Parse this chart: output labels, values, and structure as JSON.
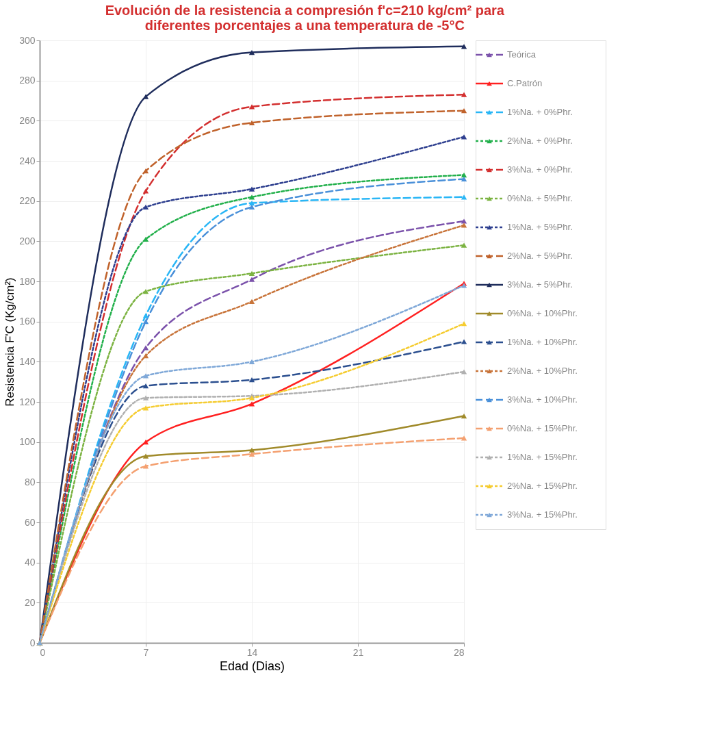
{
  "chart_data": {
    "type": "line",
    "title": [
      "Evolución de la resistencia a compresión f'c=210 kg/cm² para",
      "diferentes porcentajes a una temperatura de -5°C"
    ],
    "xlabel": "Edad (Dias)",
    "ylabel": "Resistencia F'C  (Kg/cm²)",
    "x": [
      0,
      7,
      14,
      28
    ],
    "xlim": [
      0,
      28
    ],
    "xticks": [
      0,
      7,
      14,
      21,
      28
    ],
    "ylim": [
      0,
      300
    ],
    "yticks": [
      0,
      20,
      40,
      60,
      80,
      100,
      120,
      140,
      160,
      180,
      200,
      220,
      240,
      260,
      280,
      300
    ],
    "grid": true,
    "legend": "right",
    "marker": "triangle",
    "series": [
      {
        "name": "Teórica",
        "color": "#7b52ab",
        "line_style": "dashed",
        "values": [
          0,
          147,
          181,
          210
        ]
      },
      {
        "name": "C.Patrón",
        "color": "#ff2020",
        "line_style": "solid",
        "values": [
          0,
          100,
          119,
          179
        ]
      },
      {
        "name": "1%Na. + 0%Phr.",
        "color": "#29b6f6",
        "line_style": "dashed",
        "values": [
          0,
          163,
          219,
          222
        ]
      },
      {
        "name": "2%Na. + 0%Phr.",
        "color": "#22b04b",
        "line_style": "dotted",
        "values": [
          0,
          201,
          222,
          233
        ]
      },
      {
        "name": "3%Na. + 0%Phr.",
        "color": "#d32f2f",
        "line_style": "dashed",
        "values": [
          0,
          225,
          267,
          273
        ]
      },
      {
        "name": "0%Na. + 5%Phr.",
        "color": "#7cb342",
        "line_style": "dotted",
        "values": [
          0,
          175,
          184,
          198
        ]
      },
      {
        "name": "1%Na. + 5%Phr.",
        "color": "#2e3f8f",
        "line_style": "dotted",
        "values": [
          0,
          217,
          226,
          252
        ]
      },
      {
        "name": "2%Na. + 5%Phr.",
        "color": "#c0622b",
        "line_style": "dashed",
        "values": [
          0,
          235,
          259,
          265
        ]
      },
      {
        "name": "3%Na. + 5%Phr.",
        "color": "#1f2d5c",
        "line_style": "solid",
        "values": [
          0,
          272,
          294,
          297
        ]
      },
      {
        "name": "0%Na. + 10%Phr.",
        "color": "#a08a2a",
        "line_style": "solid",
        "values": [
          0,
          93,
          96,
          113
        ]
      },
      {
        "name": "1%Na. + 10%Phr.",
        "color": "#2b4f8f",
        "line_style": "dashed",
        "values": [
          0,
          128,
          131,
          150
        ]
      },
      {
        "name": "2%Na. + 10%Phr.",
        "color": "#c8743a",
        "line_style": "dotted",
        "values": [
          0,
          143,
          170,
          208
        ]
      },
      {
        "name": "3%Na. + 10%Phr.",
        "color": "#4a90d9",
        "line_style": "dashed",
        "values": [
          0,
          160,
          217,
          231
        ]
      },
      {
        "name": "0%Na. + 15%Phr.",
        "color": "#f4a070",
        "line_style": "dashed",
        "values": [
          0,
          88,
          94,
          102
        ]
      },
      {
        "name": "1%Na. + 15%Phr.",
        "color": "#b0b0b0",
        "line_style": "dotted",
        "values": [
          0,
          122,
          123,
          135
        ]
      },
      {
        "name": "2%Na. + 15%Phr.",
        "color": "#f5cc30",
        "line_style": "dotted",
        "values": [
          0,
          117,
          122,
          159
        ]
      },
      {
        "name": "3%Na. + 15%Phr.",
        "color": "#7fa8d8",
        "line_style": "dotted",
        "values": [
          0,
          133,
          140,
          178
        ]
      }
    ]
  }
}
